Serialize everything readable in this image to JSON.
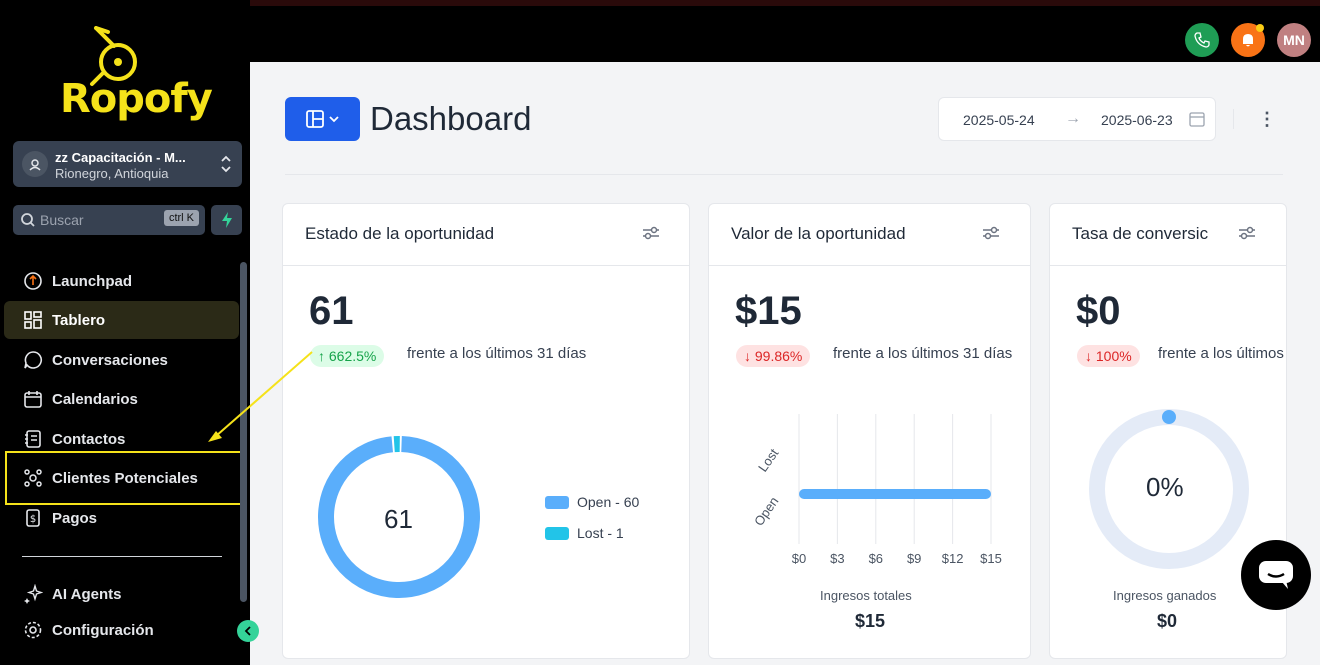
{
  "sidebar": {
    "logo_text": "Ropofy",
    "location": {
      "name": "zz Capacitación - M...",
      "city": "Rionegro, Antioquia"
    },
    "search": {
      "placeholder": "Buscar",
      "shortcut": "ctrl K"
    },
    "items": [
      {
        "label": "Launchpad",
        "icon": "rocket-icon"
      },
      {
        "label": "Tablero",
        "icon": "grid-icon",
        "active": true
      },
      {
        "label": "Conversaciones",
        "icon": "chat-icon"
      },
      {
        "label": "Calendarios",
        "icon": "calendar-icon"
      },
      {
        "label": "Contactos",
        "icon": "contacts-icon"
      },
      {
        "label": "Clientes Potenciales",
        "icon": "funnel-icon",
        "highlighted": true
      },
      {
        "label": "Pagos",
        "icon": "payment-icon"
      },
      {
        "label": "AI Agents",
        "icon": "sparkle-icon"
      },
      {
        "label": "Configuración",
        "icon": "gear-icon"
      }
    ]
  },
  "topbar": {
    "avatar_initials": "MN"
  },
  "header": {
    "title": "Dashboard",
    "date_start": "2025-05-24",
    "date_end": "2025-06-23"
  },
  "cards": [
    {
      "title": "Estado de la oportunidad",
      "value": "61",
      "change": "662.5%",
      "change_direction": "up",
      "compare_text": "frente a los últimos 31 días",
      "donut_center": "61"
    },
    {
      "title": "Valor de la oportunidad",
      "value": "$15",
      "change": "99.86%",
      "change_direction": "down",
      "compare_text": "frente a los últimos 31 días",
      "footer_label": "Ingresos totales",
      "footer_value": "$15"
    },
    {
      "title": "Tasa de conversic",
      "value": "$0",
      "change": "100%",
      "change_direction": "down",
      "compare_text": "frente a los últimos",
      "gauge_center": "0%",
      "footer_label": "Ingresos ganados",
      "footer_value": "$0"
    }
  ],
  "chart_data": [
    {
      "type": "pie",
      "categories": [
        "Open",
        "Lost"
      ],
      "values": [
        60,
        1
      ],
      "legend": [
        "Open - 60",
        "Lost - 1"
      ],
      "colors": [
        "#5aaefb",
        "#22c4e8"
      ],
      "legend_placement": "right"
    },
    {
      "type": "bar",
      "orientation": "horizontal",
      "categories": [
        "Lost",
        "Open"
      ],
      "values": [
        0,
        15
      ],
      "x_ticks": [
        "$0",
        "$3",
        "$6",
        "$9",
        "$12",
        "$15"
      ],
      "xlim": [
        0,
        15
      ],
      "colors": [
        "#5aaefb"
      ],
      "grid": true
    }
  ],
  "colors": {
    "accent": "#1f5eea",
    "brand_yellow": "#f5e21a",
    "highlight_border": "#f5e21a"
  }
}
